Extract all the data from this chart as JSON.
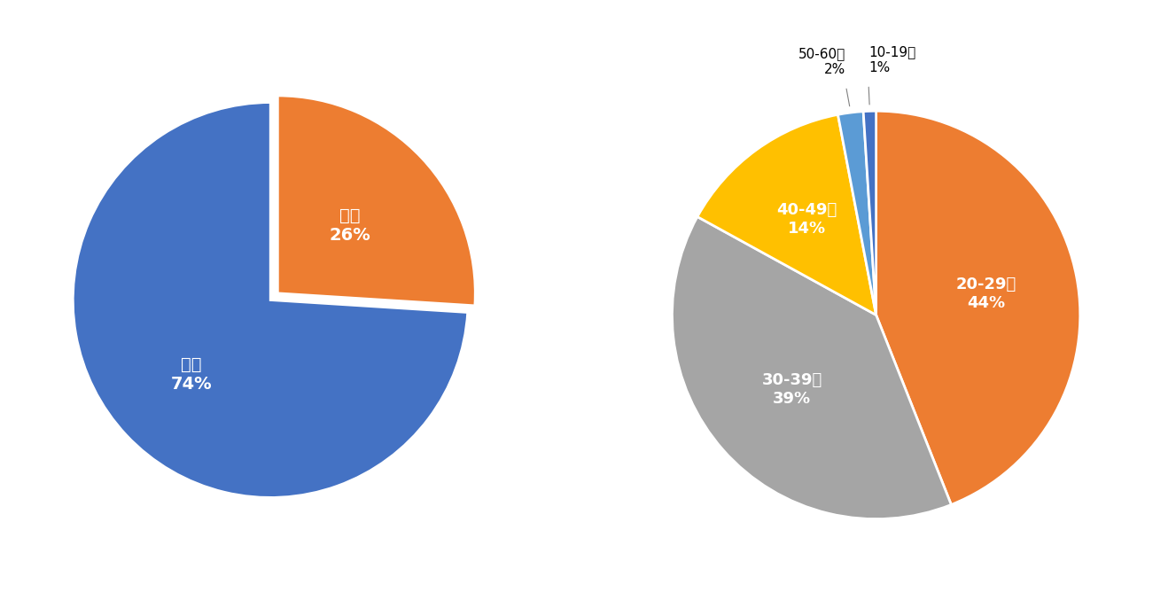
{
  "chart1": {
    "labels": [
      "女性",
      "男性"
    ],
    "values": [
      74,
      26
    ],
    "colors": [
      "#4472C4",
      "#ED7D31"
    ],
    "text_labels": [
      "女性\n74%",
      "男性\n26%"
    ],
    "startangle": 90,
    "explode": [
      0,
      0.05
    ]
  },
  "chart2": {
    "labels": [
      "20-29才",
      "30-39才",
      "40-49才",
      "50-60才",
      "10-19才"
    ],
    "values": [
      44,
      39,
      14,
      2,
      1
    ],
    "colors": [
      "#ED7D31",
      "#A5A5A5",
      "#FFC000",
      "#5B9BD5",
      "#4472C4"
    ],
    "startangle": 90,
    "explode": [
      0,
      0,
      0,
      0,
      0
    ],
    "inside_labels": [
      "20-29才\n44%",
      "30-39才\n39%",
      "40-49才\n14%",
      "",
      ""
    ],
    "outside_labels": [
      "",
      "",
      "",
      "50-60才\n2%",
      "10-19才\n1%"
    ]
  },
  "background_color": "#FFFFFF",
  "text_color_white": "#FFFFFF",
  "text_color_black": "#000000",
  "label_fontsize": 14,
  "inside_fontsize": 13
}
